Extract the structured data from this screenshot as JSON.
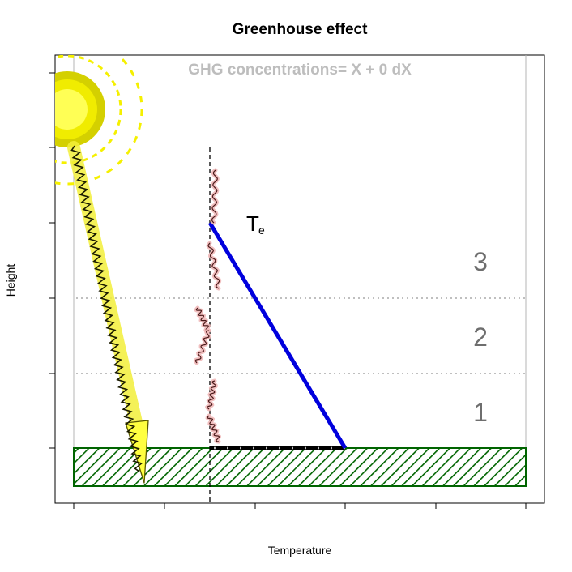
{
  "title": "Greenhouse effect",
  "xlabel": "Temperature",
  "ylabel": "Height",
  "ghg_label": "GHG concentrations= X + 0 dX",
  "emission_label": {
    "main": "T",
    "sub": "e"
  },
  "layers": [
    "1",
    "2",
    "3"
  ],
  "colors": {
    "sun_outer": "#d4d000",
    "sun_middle": "#f0ec00",
    "sun_inner": "#ffff55",
    "sun_rays": "#f5f000",
    "sunlight_glow": "#f2ee3a",
    "ground_stroke": "#006400",
    "lapse_line": "#0000dd",
    "ir_glow": "#f0b8b8",
    "ir_wave": "#4a1a1a"
  }
}
